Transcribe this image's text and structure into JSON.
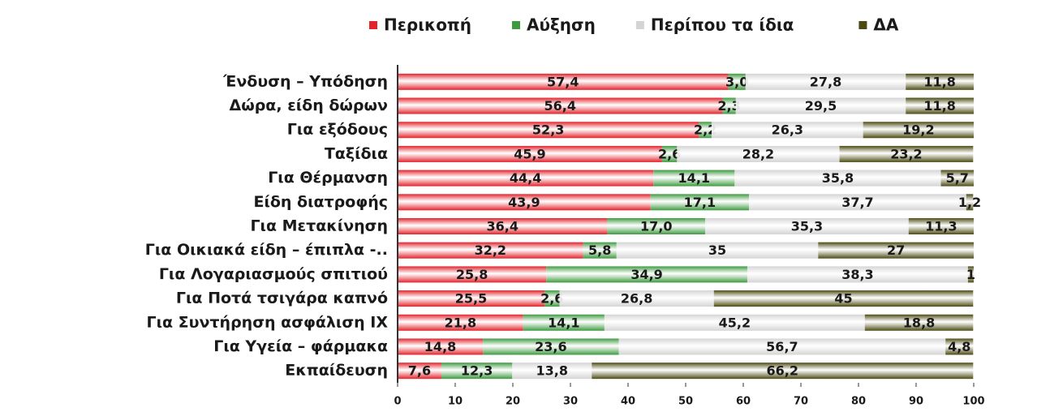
{
  "chart_data": {
    "type": "stacked_barh",
    "categories": [
      "Ένδυση – Υπόδηση",
      "Δώρα, είδη δώρων",
      "Για εξόδους",
      "Ταξίδια",
      "Για Θέρμανση",
      "Είδη διατροφής",
      "Για Μετακίνηση",
      "Για Οικιακά είδη – έπιπλα -..",
      "Για Λογαριασμούς σπιτιού",
      "Για Ποτά  τσιγάρα  καπνό",
      "Για Συντήρηση  ασφάλιση ΙΧ",
      "Για Υγεία – φάρμακα",
      "Εκπαίδευση"
    ],
    "series": [
      {
        "name": "Περικοπή",
        "color": "#e3222b",
        "values": [
          57.4,
          56.4,
          52.3,
          45.9,
          44.4,
          43.9,
          36.4,
          32.2,
          25.8,
          25.5,
          21.8,
          14.8,
          7.6
        ],
        "value_labels": [
          "57,4",
          "56,4",
          "52,3",
          "45,9",
          "44,4",
          "43,9",
          "36,4",
          "32,2",
          "25,8",
          "25,5",
          "21,8",
          "14,8",
          "7,6"
        ]
      },
      {
        "name": "Αύξηση",
        "color": "#3d9a3f",
        "values": [
          3.0,
          2.3,
          2.2,
          2.6,
          14.1,
          17.1,
          17.0,
          5.8,
          34.9,
          2.6,
          14.1,
          23.6,
          12.3
        ],
        "value_labels": [
          "3,0",
          "2,3",
          "2,2",
          "2,6",
          "14,1",
          "17,1",
          "17,0",
          "5,8",
          "34,9",
          "2,6",
          "14,1",
          "23,6",
          "12,3"
        ]
      },
      {
        "name": "Περίπου τα ίδια",
        "color": "#d4d4d4",
        "values": [
          27.8,
          29.5,
          26.3,
          28.2,
          35.8,
          37.7,
          35.3,
          35,
          38.3,
          26.8,
          45.2,
          56.7,
          13.8
        ],
        "value_labels": [
          "27,8",
          "29,5",
          "26,3",
          "28,2",
          "35,8",
          "37,7",
          "35,3",
          "35",
          "38,3",
          "26,8",
          "45,2",
          "56,7",
          "13,8"
        ]
      },
      {
        "name": "ΔΑ",
        "color": "#4b4a12",
        "values": [
          11.8,
          11.8,
          19.2,
          23.2,
          5.7,
          1.2,
          11.3,
          27,
          1,
          45,
          18.8,
          4.8,
          66.2
        ],
        "value_labels": [
          "11,8",
          "11,8",
          "19,2",
          "23,2",
          "5,7",
          "1,2",
          "11,3",
          "27",
          "1",
          "45",
          "18,8",
          "4,8",
          "66,2"
        ]
      }
    ],
    "xlim": [
      0,
      100
    ],
    "xticks": [
      0,
      10,
      20,
      30,
      40,
      50,
      60,
      70,
      80,
      90,
      100
    ],
    "legend": "top"
  }
}
